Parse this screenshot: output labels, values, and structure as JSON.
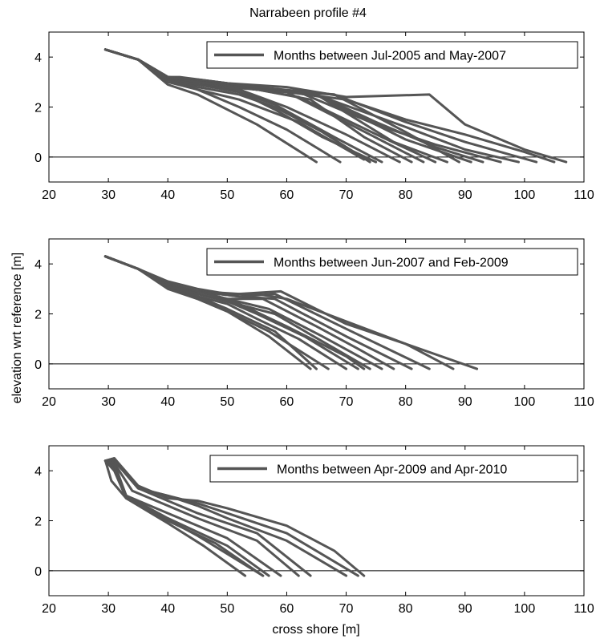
{
  "figure": {
    "title": "Narrabeen profile #4",
    "ylabel": "elevation wrt reference [m]",
    "xlabel": "cross shore [m]"
  },
  "style": {
    "line_color": "#555555",
    "axis_color": "#000000",
    "legend_box": "#000000"
  },
  "chart_data": [
    {
      "type": "line",
      "legend": "Months between Jul-2005 and May-2007",
      "legend_position": "top-right",
      "xlim": [
        20,
        110
      ],
      "ylim": [
        -1,
        5
      ],
      "xticks": [
        20,
        30,
        40,
        50,
        60,
        70,
        80,
        90,
        100,
        110
      ],
      "yticks": [
        0,
        2,
        4
      ],
      "reference_line_y": 0,
      "series": [
        {
          "x": [
            29.5,
            35,
            40,
            42,
            50,
            60,
            70,
            84,
            90,
            100,
            107
          ],
          "y": [
            4.3,
            3.9,
            3.2,
            3.2,
            2.95,
            2.8,
            2.4,
            2.5,
            1.3,
            0.3,
            -0.2
          ]
        },
        {
          "x": [
            29.5,
            35,
            40,
            45,
            55,
            60,
            70,
            80,
            90,
            100,
            105
          ],
          "y": [
            4.3,
            3.9,
            3.2,
            3.1,
            2.8,
            2.6,
            2.3,
            1.5,
            0.9,
            0.2,
            -0.2
          ]
        },
        {
          "x": [
            29.5,
            35,
            40,
            45,
            55,
            68,
            80,
            90,
            102
          ],
          "y": [
            4.3,
            3.9,
            3.2,
            3.1,
            2.8,
            2.5,
            1.4,
            0.6,
            -0.2
          ]
        },
        {
          "x": [
            29.5,
            35,
            40,
            45,
            55,
            66,
            80,
            90,
            99
          ],
          "y": [
            4.3,
            3.9,
            3.2,
            3.0,
            2.8,
            2.4,
            1.2,
            0.3,
            -0.2
          ]
        },
        {
          "x": [
            29.5,
            35,
            40,
            45,
            55,
            62,
            75,
            85,
            96
          ],
          "y": [
            4.3,
            3.9,
            3.2,
            3.0,
            2.8,
            2.6,
            1.3,
            0.5,
            -0.2
          ]
        },
        {
          "x": [
            29.5,
            35,
            40,
            45,
            55,
            65,
            75,
            85,
            93
          ],
          "y": [
            4.3,
            3.9,
            3.2,
            3.0,
            2.8,
            2.5,
            1.4,
            0.4,
            -0.2
          ]
        },
        {
          "x": [
            29.5,
            35,
            40,
            45,
            55,
            64,
            80,
            91
          ],
          "y": [
            4.3,
            3.9,
            3.2,
            3.0,
            2.7,
            2.6,
            0.7,
            -0.2
          ]
        },
        {
          "x": [
            29.5,
            35,
            40,
            45,
            55,
            68,
            80,
            89
          ],
          "y": [
            4.3,
            3.9,
            3.2,
            3.0,
            2.7,
            2.5,
            1.0,
            -0.2
          ]
        },
        {
          "x": [
            29.5,
            35,
            40,
            45,
            55,
            65,
            78,
            87
          ],
          "y": [
            4.3,
            3.9,
            3.2,
            3.0,
            2.7,
            2.5,
            0.6,
            -0.2
          ]
        },
        {
          "x": [
            29.5,
            35,
            40,
            45,
            55,
            62,
            76,
            85
          ],
          "y": [
            4.3,
            3.9,
            3.1,
            3.0,
            2.7,
            2.4,
            0.8,
            -0.2
          ]
        },
        {
          "x": [
            29.5,
            35,
            40,
            45,
            55,
            60,
            74,
            83
          ],
          "y": [
            4.3,
            3.9,
            3.1,
            3.0,
            2.7,
            2.6,
            0.9,
            -0.2
          ]
        },
        {
          "x": [
            29.5,
            35,
            40,
            45,
            55,
            64,
            73,
            81
          ],
          "y": [
            4.3,
            3.9,
            3.1,
            2.9,
            2.7,
            2.3,
            0.8,
            -0.2
          ]
        },
        {
          "x": [
            29.5,
            35,
            40,
            45,
            52,
            60,
            70,
            79
          ],
          "y": [
            4.3,
            3.9,
            3.1,
            2.9,
            2.7,
            2.0,
            0.9,
            -0.2
          ]
        },
        {
          "x": [
            29.5,
            35,
            40,
            45,
            52,
            58,
            68,
            76
          ],
          "y": [
            4.3,
            3.9,
            3.1,
            2.9,
            2.6,
            2.1,
            0.8,
            -0.2
          ]
        },
        {
          "x": [
            29.5,
            35,
            40,
            45,
            52,
            58,
            66,
            75
          ],
          "y": [
            4.3,
            3.9,
            3.1,
            2.9,
            2.6,
            1.9,
            0.8,
            -0.2
          ]
        },
        {
          "x": [
            29.5,
            35,
            40,
            45,
            52,
            58,
            66,
            74
          ],
          "y": [
            4.3,
            3.9,
            3.1,
            2.8,
            2.5,
            2.0,
            1.0,
            -0.2
          ]
        },
        {
          "x": [
            29.5,
            35,
            40,
            45,
            52,
            62,
            73
          ],
          "y": [
            4.3,
            3.9,
            3.1,
            2.7,
            2.3,
            1.4,
            -0.1
          ]
        },
        {
          "x": [
            29.5,
            35,
            40,
            45,
            52,
            60,
            69
          ],
          "y": [
            4.3,
            3.9,
            3.0,
            2.7,
            2.0,
            1.1,
            -0.2
          ]
        },
        {
          "x": [
            29.5,
            35,
            40,
            45,
            55,
            65
          ],
          "y": [
            4.3,
            3.9,
            2.9,
            2.5,
            1.3,
            -0.2
          ]
        }
      ]
    },
    {
      "type": "line",
      "legend": "Months between Jun-2007 and Feb-2009",
      "legend_position": "top-right",
      "xlim": [
        20,
        110
      ],
      "ylim": [
        -1,
        5
      ],
      "xticks": [
        20,
        30,
        40,
        50,
        60,
        70,
        80,
        90,
        100,
        110
      ],
      "yticks": [
        0,
        2,
        4
      ],
      "reference_line_y": 0,
      "series": [
        {
          "x": [
            29.5,
            35,
            40,
            45,
            50,
            55,
            60,
            70,
            80,
            92
          ],
          "y": [
            4.3,
            3.8,
            3.3,
            3.0,
            2.8,
            2.8,
            2.6,
            1.7,
            0.8,
            -0.2
          ]
        },
        {
          "x": [
            29.5,
            35,
            40,
            45,
            52,
            59,
            70,
            80,
            88
          ],
          "y": [
            4.3,
            3.8,
            3.2,
            2.9,
            2.8,
            2.9,
            1.6,
            0.8,
            -0.2
          ]
        },
        {
          "x": [
            29.5,
            35,
            40,
            45,
            52,
            58,
            70,
            84
          ],
          "y": [
            4.3,
            3.8,
            3.2,
            2.9,
            2.7,
            2.8,
            1.4,
            -0.2
          ]
        },
        {
          "x": [
            29.5,
            35,
            40,
            45,
            52,
            58,
            70,
            81
          ],
          "y": [
            4.3,
            3.8,
            3.2,
            2.9,
            2.7,
            2.6,
            1.1,
            -0.2
          ]
        },
        {
          "x": [
            29.5,
            35,
            40,
            45,
            50,
            56,
            65,
            72,
            78
          ],
          "y": [
            4.3,
            3.8,
            3.2,
            2.9,
            2.6,
            2.6,
            1.5,
            0.6,
            -0.2
          ]
        },
        {
          "x": [
            29.5,
            35,
            40,
            45,
            50,
            57,
            66,
            76
          ],
          "y": [
            4.3,
            3.8,
            3.2,
            2.9,
            2.6,
            2.2,
            1.1,
            -0.2
          ]
        },
        {
          "x": [
            29.5,
            35,
            40,
            45,
            50,
            58,
            66,
            74
          ],
          "y": [
            4.3,
            3.8,
            3.2,
            2.8,
            2.5,
            2.0,
            0.9,
            -0.2
          ]
        },
        {
          "x": [
            29.5,
            35,
            40,
            45,
            50,
            55,
            63,
            72
          ],
          "y": [
            4.3,
            3.8,
            3.1,
            2.8,
            2.5,
            2.0,
            1.1,
            -0.2
          ]
        },
        {
          "x": [
            29.5,
            35,
            40,
            45,
            50,
            55,
            62,
            70
          ],
          "y": [
            4.3,
            3.8,
            3.1,
            2.7,
            2.4,
            1.8,
            1.0,
            -0.2
          ]
        },
        {
          "x": [
            29.5,
            35,
            40,
            45,
            50,
            58,
            65
          ],
          "y": [
            4.3,
            3.8,
            3.1,
            2.7,
            2.2,
            1.3,
            -0.2
          ]
        },
        {
          "x": [
            29.5,
            35,
            40,
            45,
            50,
            57,
            67
          ],
          "y": [
            4.3,
            3.8,
            3.1,
            2.6,
            2.1,
            1.3,
            -0.2
          ]
        },
        {
          "x": [
            29.5,
            35,
            40,
            45,
            50,
            57,
            64
          ],
          "y": [
            4.3,
            3.8,
            3.0,
            2.6,
            2.1,
            1.1,
            -0.2
          ]
        },
        {
          "x": [
            29.5,
            35,
            40,
            45,
            52,
            60,
            70,
            73
          ],
          "y": [
            4.3,
            3.8,
            3.1,
            2.8,
            2.4,
            1.5,
            0.3,
            -0.2
          ]
        }
      ]
    },
    {
      "type": "line",
      "legend": "Months between Apr-2009 and Apr-2010",
      "legend_position": "top-right",
      "xlim": [
        20,
        110
      ],
      "ylim": [
        -1,
        5
      ],
      "xticks": [
        20,
        30,
        40,
        50,
        60,
        70,
        80,
        90,
        100,
        110
      ],
      "yticks": [
        0,
        2,
        4
      ],
      "reference_line_y": 0,
      "series": [
        {
          "x": [
            29.5,
            31,
            35,
            40,
            45,
            50,
            60,
            68,
            73
          ],
          "y": [
            4.4,
            4.5,
            3.4,
            2.9,
            2.8,
            2.5,
            1.8,
            0.8,
            -0.2
          ]
        },
        {
          "x": [
            29.5,
            31,
            35,
            40,
            45,
            50,
            60,
            72
          ],
          "y": [
            4.4,
            4.5,
            3.3,
            3.0,
            2.7,
            2.3,
            1.5,
            -0.2
          ]
        },
        {
          "x": [
            29.5,
            31,
            35,
            40,
            45,
            50,
            60,
            70
          ],
          "y": [
            4.4,
            4.4,
            3.3,
            3.0,
            2.6,
            2.1,
            1.2,
            -0.2
          ]
        },
        {
          "x": [
            29.5,
            31,
            35,
            40,
            45,
            55,
            64
          ],
          "y": [
            4.4,
            4.4,
            3.3,
            2.8,
            2.3,
            1.5,
            -0.2
          ]
        },
        {
          "x": [
            29.5,
            31,
            34,
            40,
            45,
            55,
            62
          ],
          "y": [
            4.4,
            4.3,
            3.2,
            2.6,
            2.1,
            1.2,
            -0.2
          ]
        },
        {
          "x": [
            29.5,
            31,
            33,
            40,
            50,
            59
          ],
          "y": [
            4.4,
            4.3,
            3.0,
            2.3,
            1.3,
            -0.2
          ]
        },
        {
          "x": [
            29.5,
            31,
            33,
            40,
            50,
            57
          ],
          "y": [
            4.4,
            4.2,
            3.0,
            2.1,
            1.0,
            -0.2
          ]
        },
        {
          "x": [
            29.5,
            31,
            33,
            40,
            48,
            56
          ],
          "y": [
            4.4,
            4.1,
            3.0,
            2.0,
            1.1,
            -0.2
          ]
        },
        {
          "x": [
            29.5,
            31,
            33,
            40,
            46,
            53
          ],
          "y": [
            4.4,
            4.0,
            2.9,
            1.9,
            1.0,
            -0.2
          ]
        },
        {
          "x": [
            29.5,
            30.5,
            33,
            38,
            45,
            56
          ],
          "y": [
            4.4,
            3.6,
            2.9,
            2.3,
            1.4,
            -0.2
          ]
        }
      ]
    }
  ]
}
